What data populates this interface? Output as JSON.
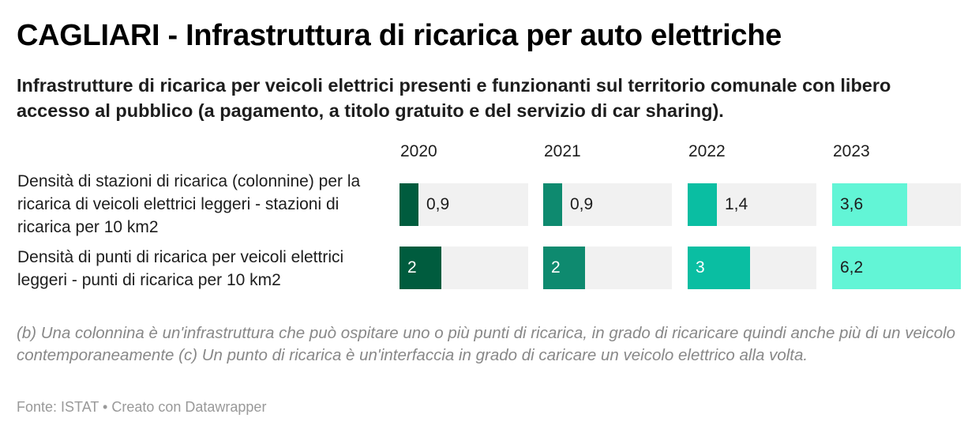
{
  "title": "CAGLIARI - Infrastruttura di ricarica per auto elettriche",
  "subtitle": "Infrastrutture di ricarica per veicoli elettrici presenti e funzionanti sul territorio comunale con libero accesso al pubblico (a pagamento, a titolo gratuito e del servizio di car sharing).",
  "notes": "(b) Una colonnina è un'infrastruttura che può ospitare uno o più punti di ricarica, in grado di ricaricare quindi anche più di un veicolo contemporaneamente (c) Un punto di ricarica è un'interfaccia in grado di caricare un veicolo elettrico alla volta.",
  "footer": "Fonte: ISTAT • Creato con Datawrapper",
  "chart_data": {
    "type": "bar",
    "columns": [
      "2020",
      "2021",
      "2022",
      "2023"
    ],
    "column_colors": [
      "#005c3e",
      "#0e8a6f",
      "#0abea2",
      "#62f5d6"
    ],
    "rows": [
      {
        "label": "Densità di stazioni di ricarica (colonnine) per la ricarica di veicoli elettrici leggeri - stazioni di ricarica per 10 km2",
        "values": [
          0.9,
          0.9,
          1.4,
          3.6
        ],
        "value_labels": [
          "0,9",
          "0,9",
          "1,4",
          "3,6"
        ]
      },
      {
        "label": "Densità di punti di ricarica per veicoli elettrici leggeri - punti di ricarica per 10 km2",
        "values": [
          2,
          2,
          3,
          6.2
        ],
        "value_labels": [
          "2",
          "2",
          "3",
          "6,2"
        ]
      }
    ],
    "xlim": [
      0,
      6.2
    ]
  }
}
